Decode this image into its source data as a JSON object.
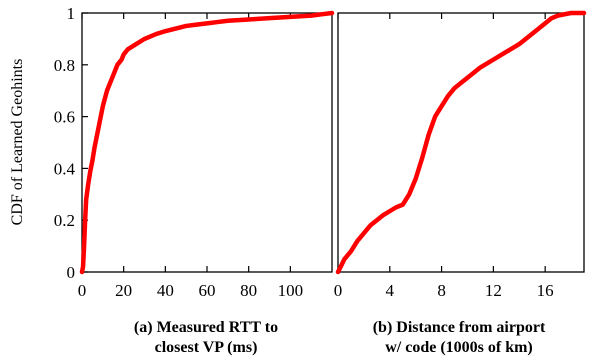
{
  "chart_data": [
    {
      "type": "line",
      "id": "a",
      "caption": [
        "(a) Measured RTT to",
        "closest VP (ms)"
      ],
      "ylabel": "CDF of Learned Geohints",
      "xlim": [
        0,
        120
      ],
      "ylim": [
        0,
        1
      ],
      "xticks": [
        0,
        20,
        40,
        60,
        80,
        100
      ],
      "yticks": [
        0,
        0.2,
        0.4,
        0.6,
        0.8,
        1
      ],
      "yticklabels": [
        "0",
        "0.2",
        "0.4",
        "0.6",
        "0.8",
        "1"
      ],
      "color": "#ff0000",
      "series": [
        {
          "x": [
            0,
            0.5,
            1,
            1.5,
            2,
            3,
            4,
            5,
            6,
            7,
            8,
            9,
            10,
            11,
            12,
            13,
            14,
            15,
            16,
            17,
            18,
            19,
            20,
            22,
            24,
            26,
            28,
            30,
            33,
            36,
            40,
            45,
            50,
            55,
            60,
            65,
            70,
            80,
            90,
            100,
            110,
            115,
            120
          ],
          "y": [
            0,
            0.02,
            0.1,
            0.2,
            0.28,
            0.34,
            0.39,
            0.43,
            0.48,
            0.52,
            0.56,
            0.6,
            0.64,
            0.67,
            0.7,
            0.72,
            0.74,
            0.76,
            0.78,
            0.8,
            0.81,
            0.82,
            0.84,
            0.86,
            0.87,
            0.88,
            0.89,
            0.9,
            0.91,
            0.92,
            0.93,
            0.94,
            0.95,
            0.955,
            0.96,
            0.965,
            0.97,
            0.975,
            0.98,
            0.985,
            0.99,
            0.995,
            1
          ]
        }
      ]
    },
    {
      "type": "line",
      "id": "b",
      "caption": [
        "(b) Distance from airport",
        "w/ code (1000s of km)"
      ],
      "xlim": [
        0,
        19
      ],
      "ylim": [
        0,
        1
      ],
      "xticks": [
        0,
        4,
        8,
        12,
        16
      ],
      "color": "#ff0000",
      "series": [
        {
          "x": [
            0,
            0.2,
            0.5,
            1,
            1.5,
            2,
            2.5,
            3,
            3.5,
            4,
            4.5,
            5,
            5.5,
            6,
            6.5,
            7,
            7.5,
            8,
            8.5,
            9,
            9.5,
            10,
            11,
            12,
            13,
            14,
            15,
            16,
            16.5,
            17,
            18,
            19
          ],
          "y": [
            0,
            0.02,
            0.05,
            0.08,
            0.12,
            0.15,
            0.18,
            0.2,
            0.22,
            0.235,
            0.25,
            0.26,
            0.3,
            0.36,
            0.44,
            0.53,
            0.6,
            0.64,
            0.68,
            0.71,
            0.73,
            0.75,
            0.79,
            0.82,
            0.85,
            0.88,
            0.92,
            0.96,
            0.98,
            0.99,
            1,
            1
          ]
        }
      ]
    }
  ]
}
